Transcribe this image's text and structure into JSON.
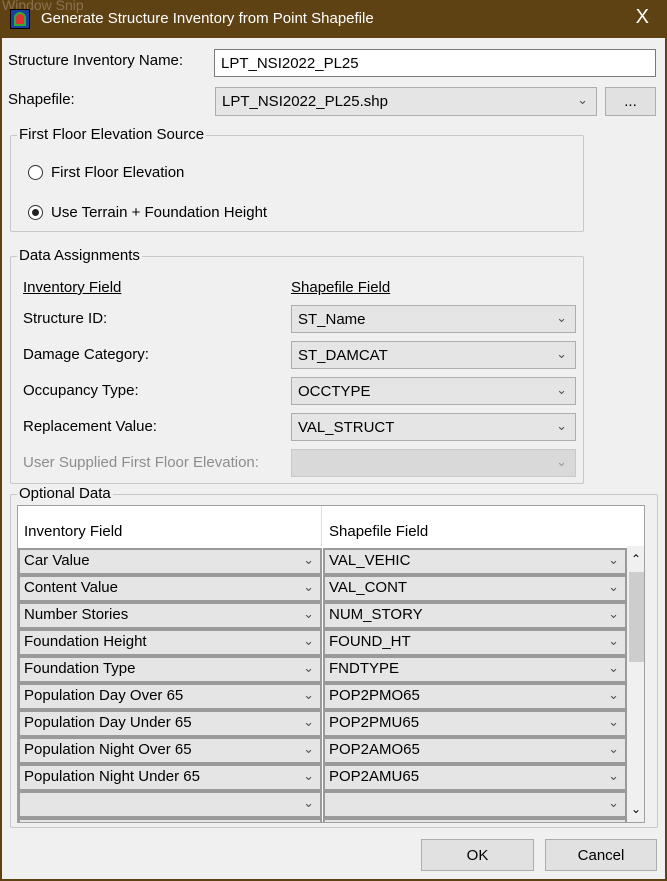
{
  "watermark": "Window Snip",
  "window": {
    "title": "Generate Structure Inventory from Point Shapefile",
    "close": "X"
  },
  "name": {
    "label": "Structure Inventory Name:",
    "value": "LPT_NSI2022_PL25"
  },
  "shapefile": {
    "label": "Shapefile:",
    "value": "LPT_NSI2022_PL25.shp",
    "browse": "..."
  },
  "ffe": {
    "title": "First Floor Elevation Source",
    "options": [
      {
        "label": "First Floor Elevation",
        "selected": false
      },
      {
        "label": "Use Terrain + Foundation Height",
        "selected": true
      }
    ]
  },
  "assign": {
    "title": "Data Assignments",
    "col_inventory": "Inventory Field",
    "col_shapefile": "Shapefile Field",
    "rows": [
      {
        "label": "Structure ID:",
        "value": "ST_Name"
      },
      {
        "label": "Damage Category:",
        "value": "ST_DAMCAT"
      },
      {
        "label": "Occupancy Type:",
        "value": "OCCTYPE"
      },
      {
        "label": "Replacement Value:",
        "value": "VAL_STRUCT"
      },
      {
        "label": "User Supplied First Floor Elevation:",
        "value": ""
      }
    ]
  },
  "optional": {
    "title": "Optional Data",
    "col_inventory": "Inventory Field",
    "col_shapefile": "Shapefile Field",
    "rows": [
      {
        "inv": "Car Value",
        "shp": "VAL_VEHIC"
      },
      {
        "inv": "Content Value",
        "shp": "VAL_CONT"
      },
      {
        "inv": "Number Stories",
        "shp": "NUM_STORY"
      },
      {
        "inv": "Foundation Height",
        "shp": "FOUND_HT"
      },
      {
        "inv": "Foundation Type",
        "shp": "FNDTYPE"
      },
      {
        "inv": "Population Day Over 65",
        "shp": "POP2PMO65"
      },
      {
        "inv": "Population Day Under 65",
        "shp": "POP2PMU65"
      },
      {
        "inv": "Population Night Over 65",
        "shp": "POP2AMO65"
      },
      {
        "inv": "Population Night Under 65",
        "shp": "POP2AMU65"
      },
      {
        "inv": "",
        "shp": ""
      }
    ]
  },
  "buttons": {
    "ok": "OK",
    "cancel": "Cancel"
  }
}
